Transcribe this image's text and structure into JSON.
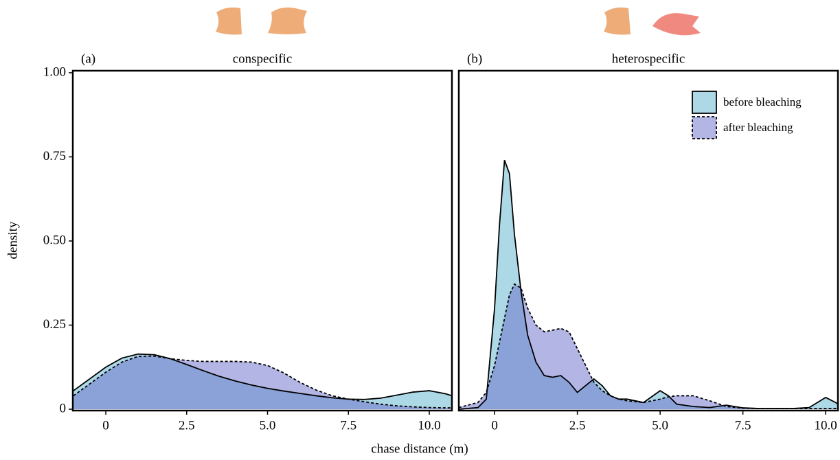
{
  "chart_data": [
    {
      "type": "density",
      "panel_label": "(a)",
      "title": "conspecific",
      "xlabel": "chase distance (m)",
      "ylabel": "density",
      "x": [
        -1,
        -0.5,
        0,
        0.5,
        1,
        1.5,
        2,
        2.5,
        3,
        3.5,
        4,
        4.5,
        5,
        5.5,
        6,
        6.5,
        7,
        7.5,
        8,
        8.5,
        9,
        9.5,
        10,
        10.5,
        10.7
      ],
      "series": [
        {
          "color": "#add8e6",
          "line_style": "solid",
          "values": [
            0.055,
            0.09,
            0.125,
            0.152,
            0.164,
            0.162,
            0.15,
            0.133,
            0.115,
            0.098,
            0.084,
            0.072,
            0.062,
            0.054,
            0.047,
            0.04,
            0.034,
            0.03,
            0.029,
            0.033,
            0.042,
            0.051,
            0.055,
            0.046,
            0.04
          ]
        },
        {
          "color": "rgba(103,107,201,0.5)",
          "line_style": "dashed",
          "values": [
            0.04,
            0.075,
            0.11,
            0.14,
            0.157,
            0.158,
            0.15,
            0.145,
            0.142,
            0.142,
            0.142,
            0.14,
            0.13,
            0.108,
            0.08,
            0.057,
            0.04,
            0.03,
            0.022,
            0.015,
            0.01,
            0.007,
            0.005,
            0.004,
            0.004
          ]
        }
      ],
      "xlim": [
        -1.02,
        10.7
      ],
      "ylim": [
        -0.004,
        1.006
      ],
      "xticks": [
        0,
        2.5,
        {
          "value": 5,
          "label": "5.0"
        },
        7.5,
        {
          "value": 10,
          "label": "10.0"
        }
      ],
      "yticks": [
        0,
        0.25,
        {
          "value": 0.5,
          "label": "0.50"
        },
        0.75,
        {
          "value": 1,
          "label": "1.00"
        }
      ]
    },
    {
      "type": "density",
      "panel_label": "(b)",
      "title": "heterospecific",
      "legend": "top-right",
      "x": [
        -1.08,
        -0.5,
        -0.25,
        0,
        0.15,
        0.3,
        0.45,
        0.6,
        0.8,
        1,
        1.25,
        1.5,
        1.75,
        2,
        2.25,
        2.5,
        2.75,
        3,
        3.25,
        3.5,
        3.75,
        4,
        4.5,
        5,
        5.25,
        5.5,
        6,
        6.5,
        7,
        7.5,
        8,
        9,
        9.5,
        10,
        10.3,
        10.37
      ],
      "series": [
        {
          "name": "before bleaching",
          "color": "#add8e6",
          "line_style": "solid",
          "values": [
            0,
            0.005,
            0.03,
            0.3,
            0.55,
            0.74,
            0.7,
            0.52,
            0.35,
            0.22,
            0.14,
            0.1,
            0.095,
            0.1,
            0.08,
            0.05,
            0.07,
            0.09,
            0.07,
            0.04,
            0.03,
            0.03,
            0.02,
            0.055,
            0.04,
            0.015,
            0.008,
            0.005,
            0.012,
            0.004,
            0.002,
            0.002,
            0.005,
            0.035,
            0.02,
            0.015
          ]
        },
        {
          "name": "after bleaching",
          "color": "rgba(103,107,201,0.5)",
          "line_style": "dashed",
          "values": [
            0.005,
            0.02,
            0.05,
            0.13,
            0.2,
            0.27,
            0.34,
            0.372,
            0.36,
            0.3,
            0.25,
            0.23,
            0.235,
            0.24,
            0.23,
            0.18,
            0.13,
            0.08,
            0.055,
            0.04,
            0.03,
            0.025,
            0.02,
            0.03,
            0.037,
            0.04,
            0.04,
            0.025,
            0.008,
            0.003,
            0.002,
            0.002,
            0.002,
            0.002,
            0.002,
            0.002
          ]
        }
      ],
      "xlim": [
        -1.08,
        10.37
      ],
      "ylim": [
        -0.004,
        1.006
      ],
      "xticks": [
        0,
        2.5,
        {
          "value": 5,
          "label": "5.0"
        },
        7.5,
        {
          "value": 10,
          "label": "10.0"
        }
      ]
    }
  ]
}
